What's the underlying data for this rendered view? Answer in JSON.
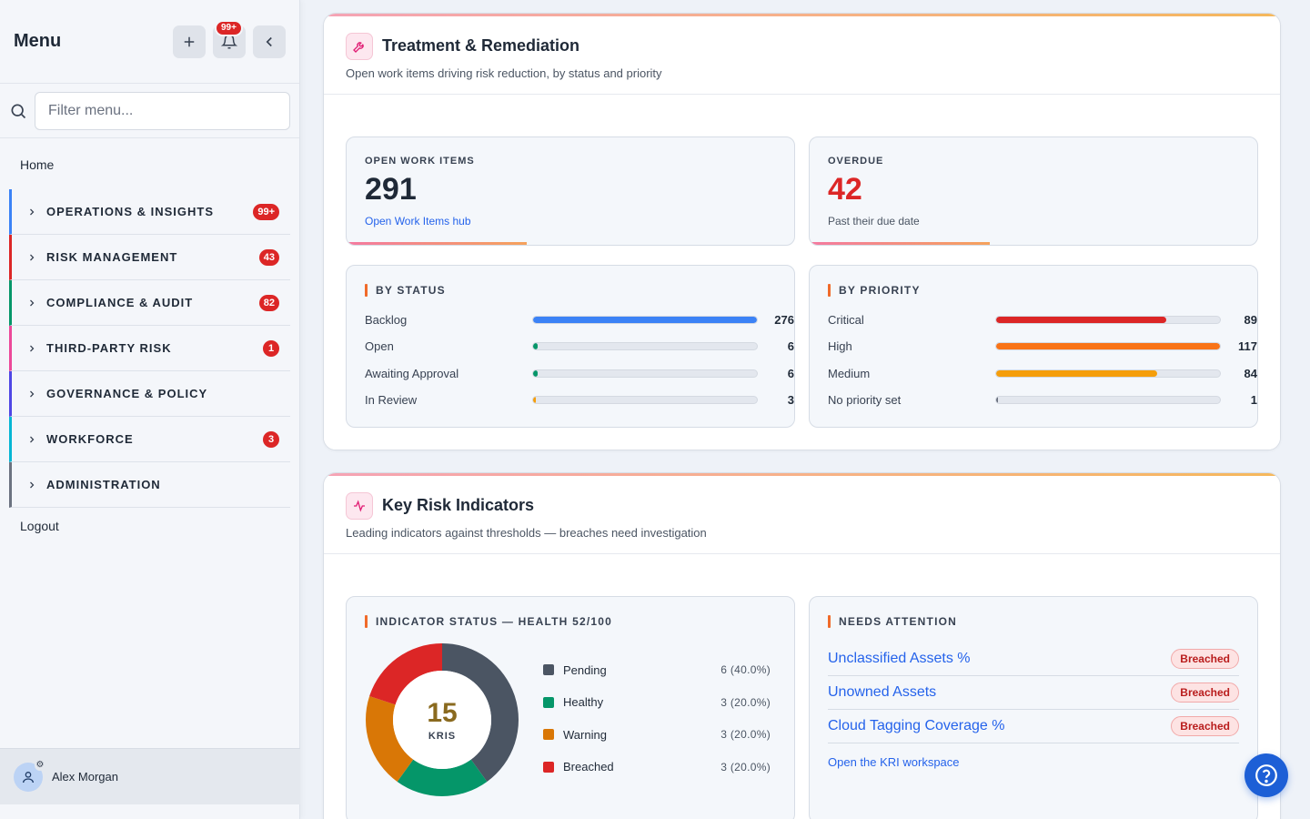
{
  "sidebar": {
    "title": "Menu",
    "notification_count": "99+",
    "search_placeholder": "Filter menu...",
    "home": "Home",
    "items": [
      {
        "label": "OPERATIONS & INSIGHTS",
        "badge": "99+",
        "accent": "#3b82f6"
      },
      {
        "label": "RISK MANAGEMENT",
        "badge": "43",
        "accent": "#dc2626"
      },
      {
        "label": "COMPLIANCE & AUDIT",
        "badge": "82",
        "accent": "#059669"
      },
      {
        "label": "THIRD-PARTY RISK",
        "badge": "1",
        "accent": "#ec4899"
      },
      {
        "label": "GOVERNANCE & POLICY",
        "badge": "",
        "accent": "#4f46e5"
      },
      {
        "label": "WORKFORCE",
        "badge": "3",
        "accent": "#06b6d4"
      },
      {
        "label": "ADMINISTRATION",
        "badge": "",
        "accent": "#6b7280"
      }
    ],
    "logout": "Logout",
    "user": "Alex Morgan"
  },
  "treatment": {
    "title": "Treatment & Remediation",
    "subtitle": "Open work items driving risk reduction, by status and priority",
    "open_items": {
      "label": "OPEN WORK ITEMS",
      "value": "291",
      "link": "Open Work Items hub"
    },
    "overdue": {
      "label": "OVERDUE",
      "value": "42",
      "note": "Past their due date"
    },
    "by_status": {
      "label": "BY STATUS",
      "max": 276,
      "rows": [
        {
          "name": "Backlog",
          "value": 276,
          "color": "#3b82f6"
        },
        {
          "name": "Open",
          "value": 6,
          "color": "#059669"
        },
        {
          "name": "Awaiting Approval",
          "value": 6,
          "color": "#059669"
        },
        {
          "name": "In Review",
          "value": 3,
          "color": "#f59e0b"
        }
      ]
    },
    "by_priority": {
      "label": "BY PRIORITY",
      "max": 117,
      "rows": [
        {
          "name": "Critical",
          "value": 89,
          "color": "#dc2626"
        },
        {
          "name": "High",
          "value": 117,
          "color": "#f97316"
        },
        {
          "name": "Medium",
          "value": 84,
          "color": "#f59e0b"
        },
        {
          "name": "No priority set",
          "value": 1,
          "color": "#6b7280"
        }
      ]
    }
  },
  "kri": {
    "title": "Key Risk Indicators",
    "subtitle": "Leading indicators against thresholds — breaches need investigation",
    "status_label": "INDICATOR STATUS — HEALTH 52/100",
    "total": "15",
    "total_unit": "KRIS",
    "legend": [
      {
        "name": "Pending",
        "value": 6,
        "display": "6 (40.0%)",
        "color": "#4b5563"
      },
      {
        "name": "Healthy",
        "value": 3,
        "display": "3 (20.0%)",
        "color": "#059669"
      },
      {
        "name": "Warning",
        "value": 3,
        "display": "3 (20.0%)",
        "color": "#d97706"
      },
      {
        "name": "Breached",
        "value": 3,
        "display": "3 (20.0%)",
        "color": "#dc2626"
      }
    ],
    "attention_label": "NEEDS ATTENTION",
    "attention": [
      {
        "name": "Unclassified Assets %",
        "status": "Breached"
      },
      {
        "name": "Unowned Assets",
        "status": "Breached"
      },
      {
        "name": "Cloud Tagging Coverage %",
        "status": "Breached"
      }
    ],
    "workspace_link": "Open the KRI workspace"
  }
}
